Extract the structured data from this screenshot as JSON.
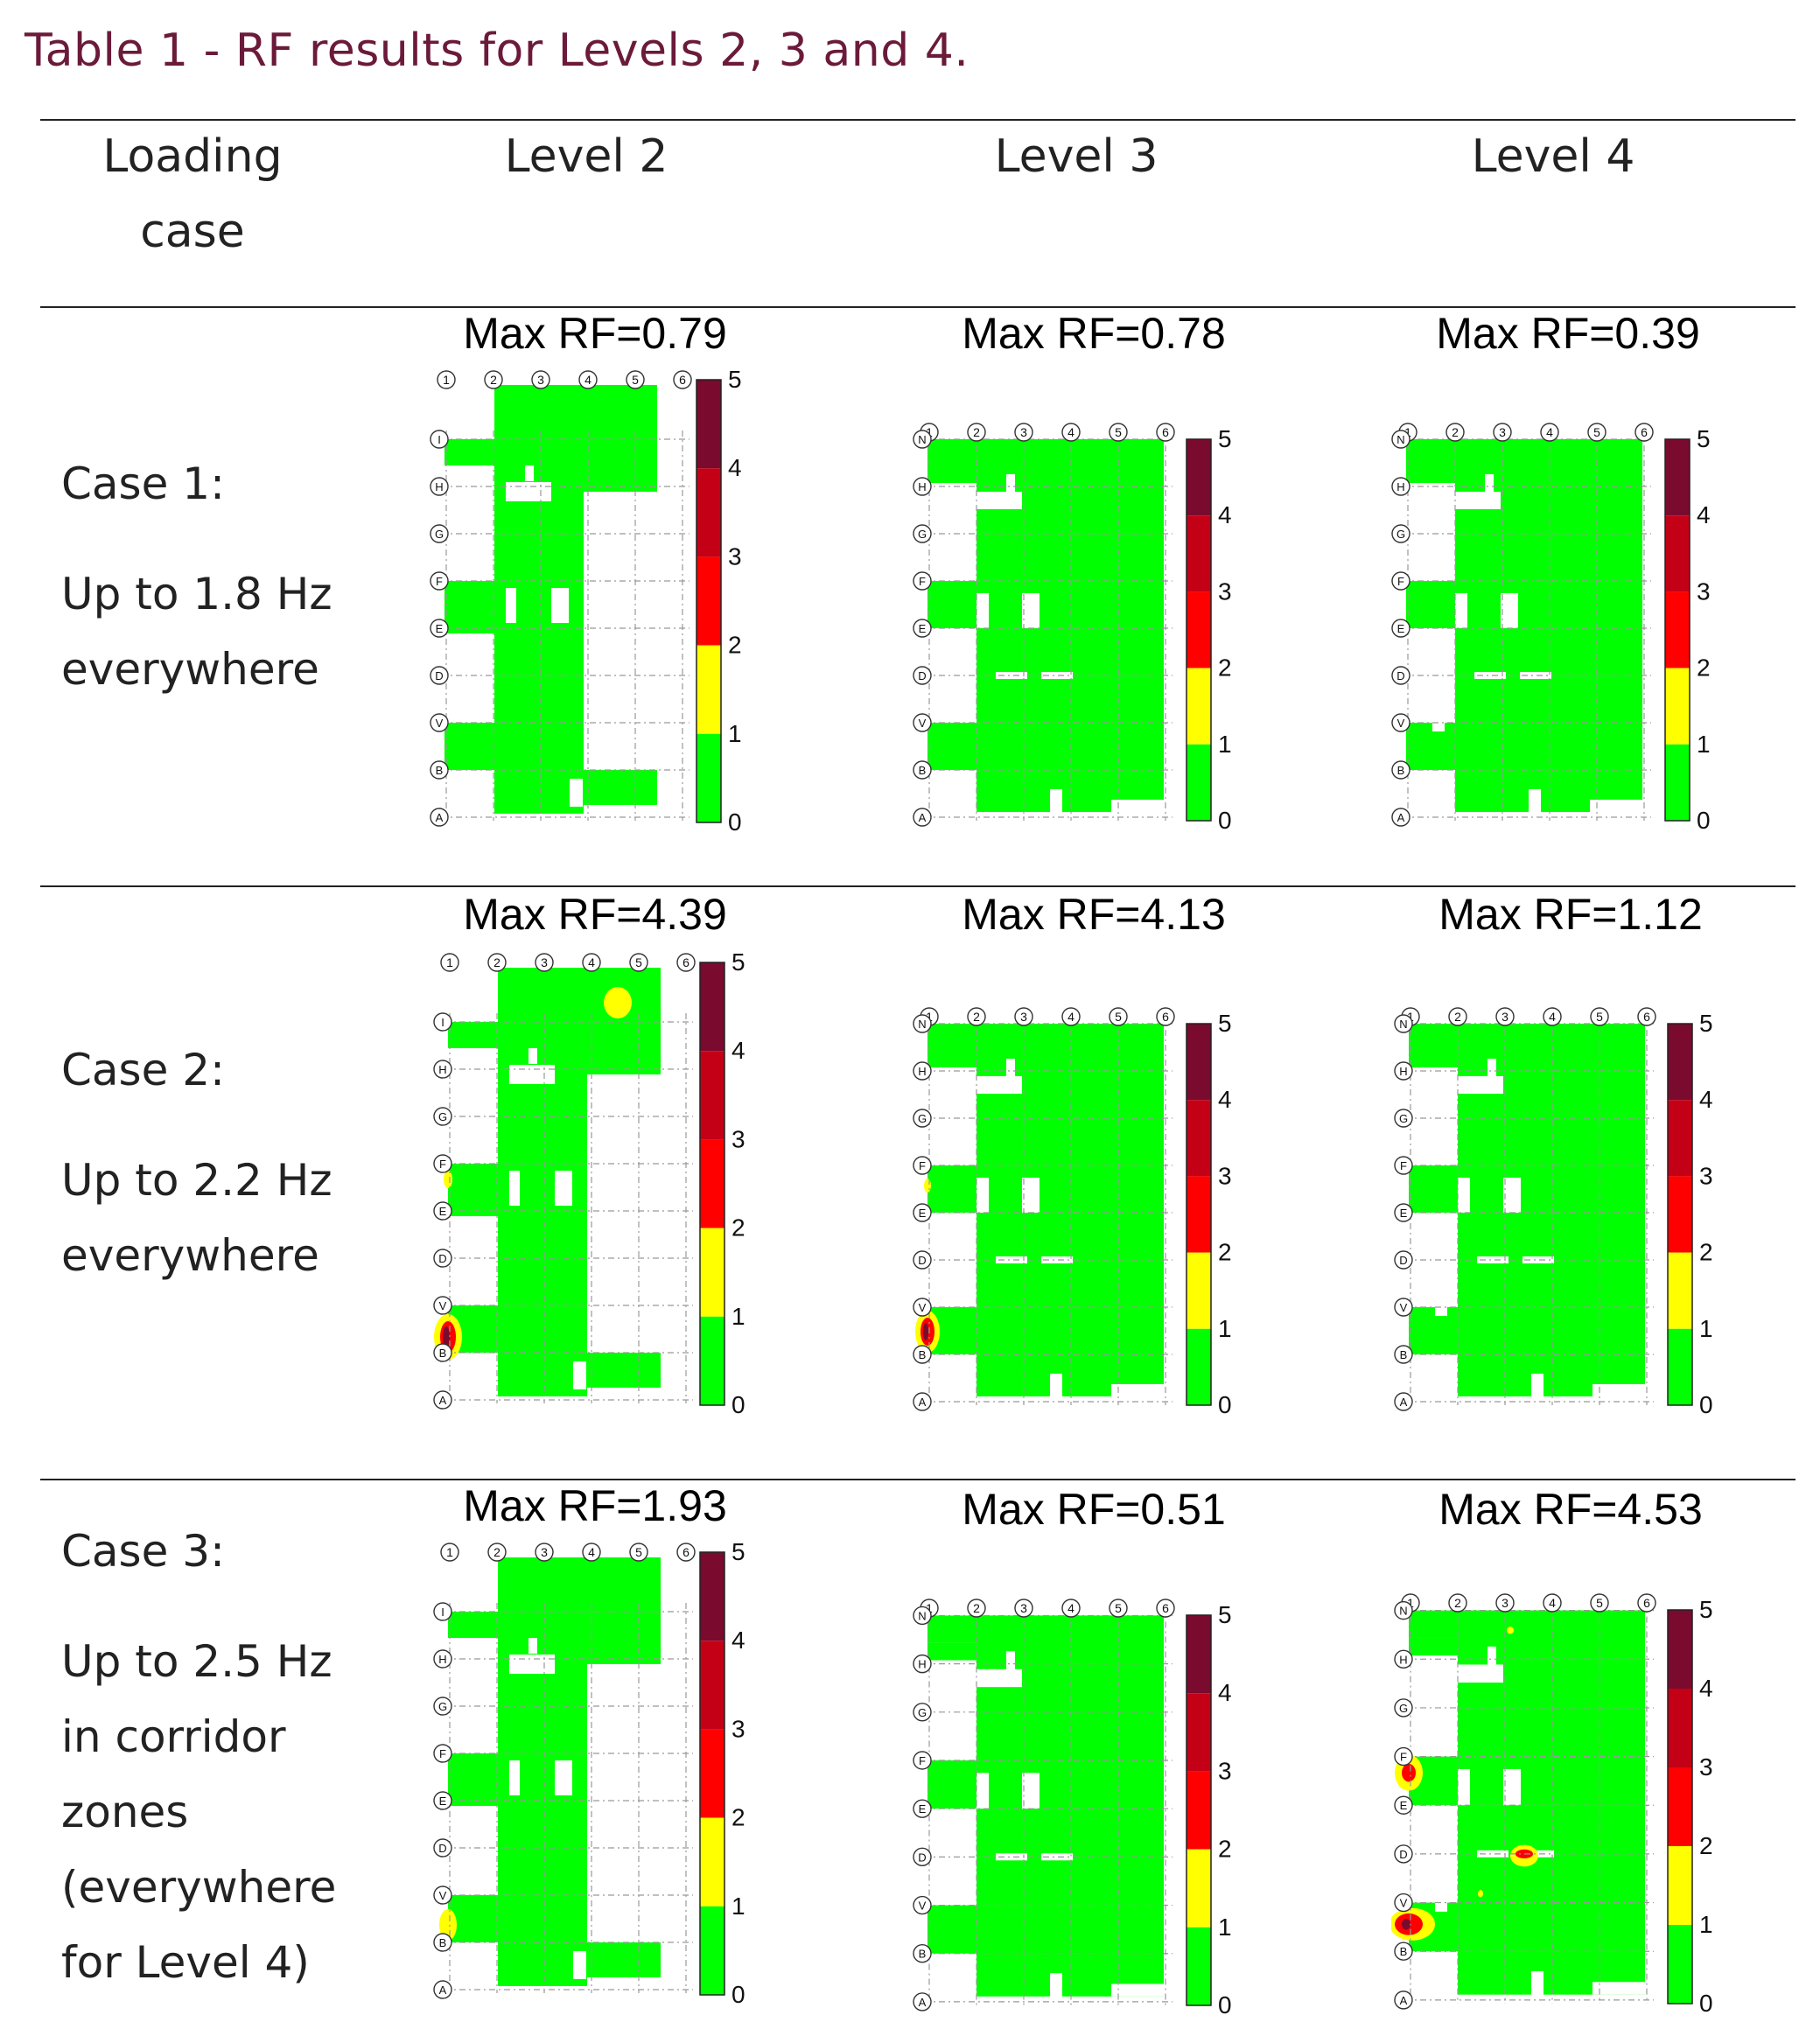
{
  "caption": "Table 1 - RF results for Levels 2, 3 and 4.",
  "columns": {
    "loading_case": [
      "Loading",
      "case"
    ],
    "level2": "Level 2",
    "level3": "Level 3",
    "level4": "Level 4"
  },
  "rows": [
    {
      "case_lines": [
        "Case 1:",
        "Up to 1.8 Hz",
        "everywhere"
      ],
      "max_rf": [
        "Max RF=0.79",
        "Max RF=0.78",
        "Max RF=0.39"
      ]
    },
    {
      "case_lines": [
        "Case 2:",
        "Up to 2.2 Hz",
        "everywhere"
      ],
      "max_rf": [
        "Max RF=4.39",
        "Max RF=4.13",
        "Max RF=1.12"
      ]
    },
    {
      "case_lines": [
        "Case 3:",
        "Up to 2.5 Hz",
        "in corridor",
        "zones",
        "(everywhere",
        "for Level 4)"
      ],
      "max_rf": [
        "Max RF=1.93",
        "Max RF=0.51",
        "Max RF=4.53"
      ]
    }
  ],
  "plot_axes": {
    "columns": [
      "1",
      "2",
      "3",
      "4",
      "5",
      "6"
    ],
    "rows_level2": [
      "I",
      "H",
      "G",
      "F",
      "E",
      "D",
      "V",
      "B",
      "A"
    ],
    "rows_level34": [
      "N",
      "H",
      "G",
      "F",
      "E",
      "D",
      "V",
      "B",
      "A"
    ]
  },
  "colorbar": {
    "ticks": [
      "5",
      "4",
      "3",
      "2",
      "1",
      "0"
    ],
    "colors": [
      "#7a0a2e",
      "#c40016",
      "#ff0000",
      "#ffff00",
      "#00ff00"
    ]
  },
  "fill_color": "#00ff00"
}
